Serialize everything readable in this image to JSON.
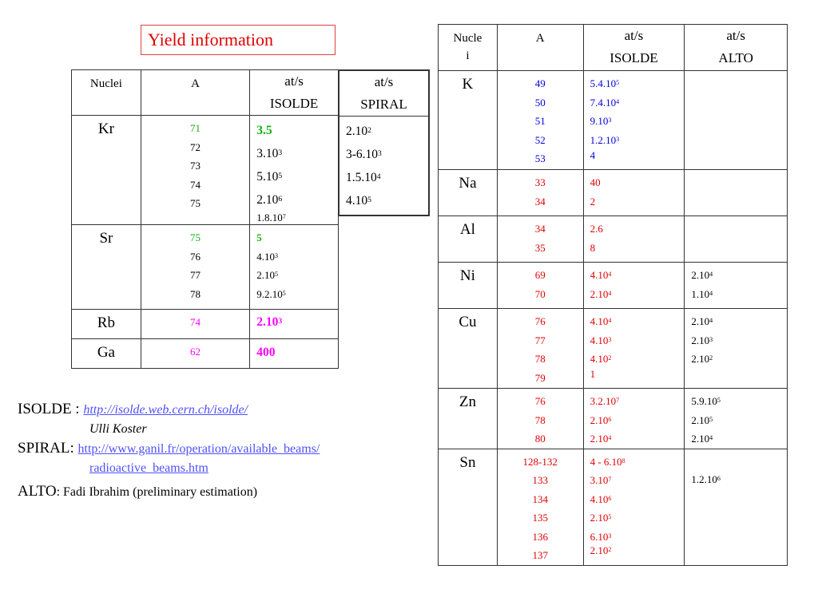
{
  "title": "Yield information",
  "left_table": {
    "headers": {
      "nuclei": "Nuclei",
      "a": "A",
      "isolde_1": "at/s",
      "isolde_2": "ISOLDE"
    },
    "rows": [
      {
        "nucleus": "Kr",
        "a": [
          "71",
          "72",
          "73",
          "74",
          "75"
        ],
        "isolde": [
          "3.5",
          "3.10^3",
          "5.10^5",
          "2.10^6",
          "1.8.10^7"
        ]
      },
      {
        "nucleus": "Sr",
        "a": [
          "75",
          "76",
          "77",
          "78"
        ],
        "isolde": [
          "5",
          "4.10^3",
          "2.10^5",
          "9.2.10^5"
        ]
      },
      {
        "nucleus": "Rb",
        "a": [
          "74"
        ],
        "isolde": [
          "2.10^3"
        ]
      },
      {
        "nucleus": "Ga",
        "a": [
          "62"
        ],
        "isolde": [
          "400"
        ]
      }
    ]
  },
  "spiral_table": {
    "header_1": "at/s",
    "header_2": "SPIRAL",
    "values": [
      "2.10^2",
      "3-6.10^3",
      "1.5.10^4",
      "4.10^5"
    ]
  },
  "right_table": {
    "headers": {
      "nuclei_1": "Nucle",
      "nuclei_2": "i",
      "a": "A",
      "isolde_1": "at/s",
      "isolde_2": "ISOLDE",
      "alto_1": "at/s",
      "alto_2": "ALTO"
    },
    "rows": [
      {
        "nucleus": "K",
        "a": [
          "49",
          "50",
          "51",
          "52",
          "53"
        ],
        "isolde": [
          "5.4.10^5",
          "7.4.10^4",
          "9.10^3",
          "1.2.10^3",
          "4"
        ],
        "alto": []
      },
      {
        "nucleus": "Na",
        "a": [
          "33",
          "34"
        ],
        "isolde": [
          "40",
          "2"
        ],
        "alto": []
      },
      {
        "nucleus": "Al",
        "a": [
          "34",
          "35"
        ],
        "isolde": [
          "2.6",
          "8"
        ],
        "alto": []
      },
      {
        "nucleus": "Ni",
        "a": [
          "69",
          "70"
        ],
        "isolde": [
          "4.10^4",
          "2.10^4"
        ],
        "alto": [
          "2.10^4",
          "1.10^4"
        ]
      },
      {
        "nucleus": "Cu",
        "a": [
          "76",
          "77",
          "78",
          "79"
        ],
        "isolde": [
          "4.10^4",
          "4.10^3",
          "4.10^2",
          "1"
        ],
        "alto": [
          "2.10^4",
          "2.10^3",
          "2.10^2"
        ]
      },
      {
        "nucleus": "Zn",
        "a": [
          "76",
          "78",
          "80"
        ],
        "isolde": [
          "3.2.10^7",
          "2.10^6",
          "2.10^4"
        ],
        "alto": [
          "5.9.10^5",
          "2.10^5",
          "2.10^4"
        ]
      },
      {
        "nucleus": "Sn",
        "a": [
          "128-132",
          "133",
          "134",
          "135",
          "136",
          "137"
        ],
        "isolde": [
          "4 - 6.10^8",
          "3.10^7",
          "4.10^6",
          "2.10^5",
          "6.10^3",
          "2.10^2"
        ],
        "alto": [
          "1.2.10^6"
        ]
      }
    ]
  },
  "references": {
    "isolde_label": "ISOLDE : ",
    "isolde_url": "http://isolde.web.cern.ch/isolde/",
    "isolde_contact": "Ulli Koster",
    "spiral_label": "SPIRAL: ",
    "spiral_url_1": "http://www.ganil.fr/operation/available_beams/",
    "spiral_url_2": "radioactive_beams.htm",
    "alto_label": "ALTO",
    "alto_note": ": Fadi Ibrahim (preliminary estimation)"
  },
  "colors": {
    "title": "#e00000",
    "green": "#10b010",
    "magenta": "#ff00ff",
    "blue": "#0000dd",
    "red": "#e00000",
    "link": "#5050ff"
  }
}
